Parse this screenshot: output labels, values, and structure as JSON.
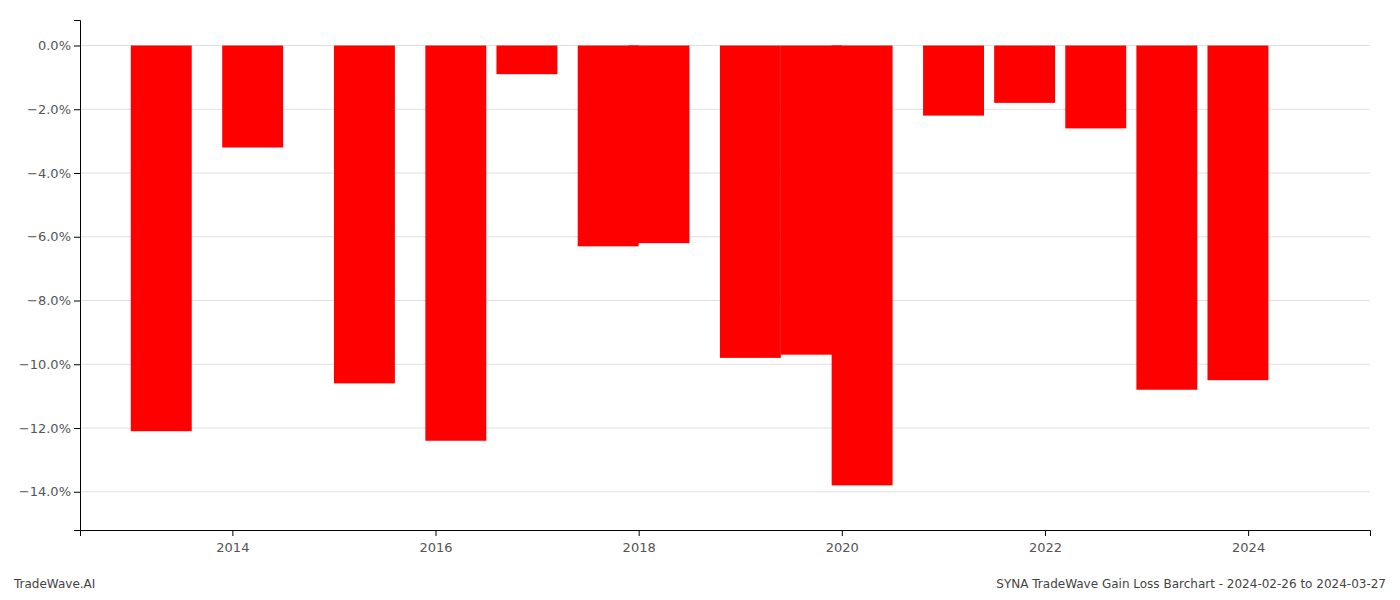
{
  "chart_data": {
    "type": "bar",
    "x": [
      2013.3,
      2014.2,
      2015.3,
      2016.2,
      2016.9,
      2017.7,
      2018.2,
      2019.1,
      2019.7,
      2020.2,
      2021.1,
      2021.8,
      2022.5,
      2023.2,
      2023.9
    ],
    "values": [
      -12.1,
      -3.2,
      -10.6,
      -12.4,
      -0.9,
      -6.3,
      -6.2,
      -9.8,
      -9.7,
      -13.8,
      -2.2,
      -1.8,
      -2.6,
      -10.8,
      -10.5
    ],
    "color": "#ff0000",
    "xlim": [
      2012.5,
      2025.2
    ],
    "xticks": [
      2014,
      2016,
      2018,
      2020,
      2022,
      2024
    ],
    "ylim": [
      -15.2,
      0.8
    ],
    "yticks": [
      {
        "value": 0.0,
        "label": "0.0%"
      },
      {
        "value": -2.0,
        "label": "−2.0%"
      },
      {
        "value": -4.0,
        "label": "−4.0%"
      },
      {
        "value": -6.0,
        "label": "−6.0%"
      },
      {
        "value": -8.0,
        "label": "−8.0%"
      },
      {
        "value": -10.0,
        "label": "−10.0%"
      },
      {
        "value": -12.0,
        "label": "−12.0%"
      },
      {
        "value": -14.0,
        "label": "−14.0%"
      }
    ],
    "grid": true,
    "annotations": [
      "TradeWave.AI",
      "SYNA TradeWave Gain Loss Barchart - 2024-02-26 to 2024-03-27"
    ]
  }
}
